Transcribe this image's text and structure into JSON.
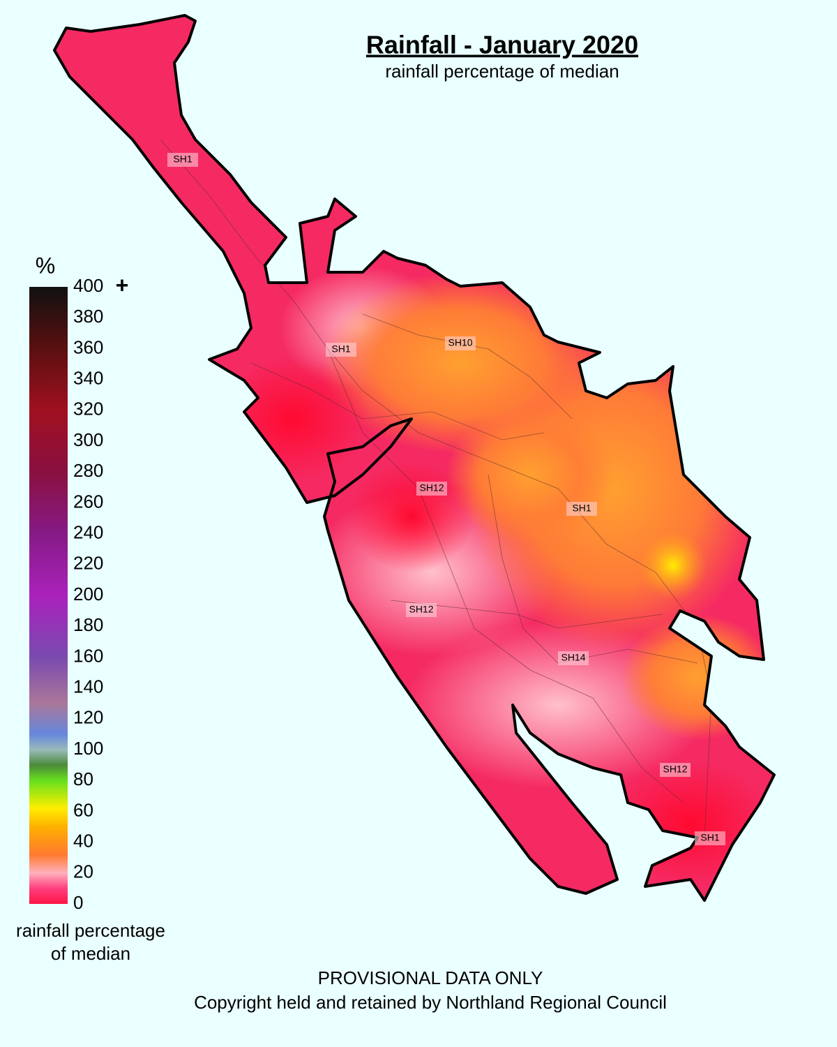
{
  "title": "Rainfall - January 2020",
  "subtitle": "rainfall percentage of median",
  "legend": {
    "unit": "%",
    "ticks": [
      0,
      20,
      40,
      60,
      80,
      100,
      120,
      140,
      160,
      180,
      200,
      220,
      240,
      260,
      280,
      300,
      320,
      340,
      360,
      380,
      400
    ],
    "top_suffix": "+",
    "caption": [
      "rainfall percentage",
      "of median"
    ]
  },
  "road_labels": [
    "SH1",
    "SH1",
    "SH10",
    "SH12",
    "SH1",
    "SH12",
    "SH14",
    "SH12",
    "SH1"
  ],
  "footer": [
    "PROVISIONAL DATA ONLY",
    "Copyright held and retained by Northland Regional Council"
  ]
}
